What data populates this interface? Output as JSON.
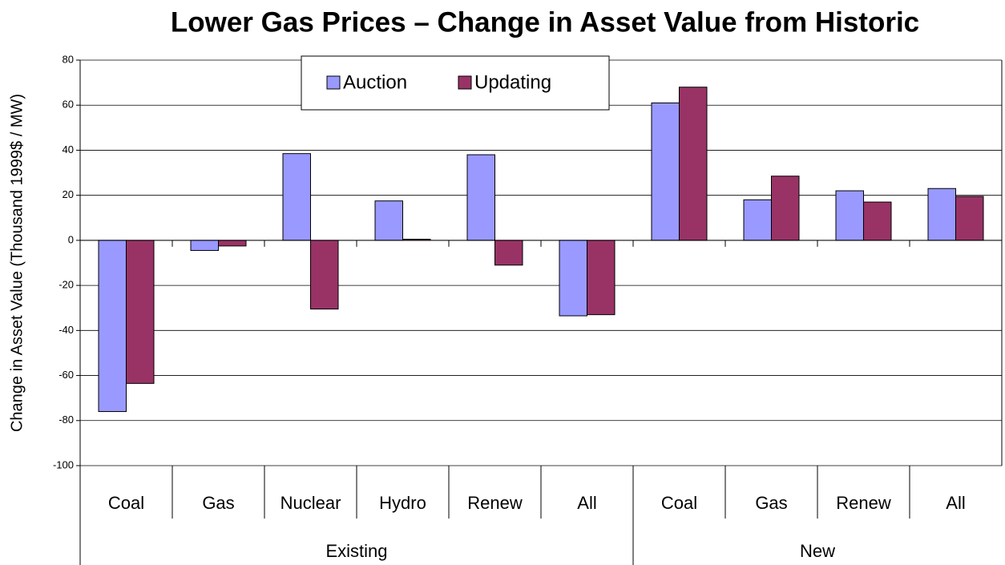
{
  "chart_data": {
    "type": "bar",
    "title": "Lower Gas Prices – Change in Asset Value from Historic",
    "y_label": "Change in Asset Value (Thousand 1999$ / MW)",
    "groups": [
      {
        "name": "Existing",
        "categories": [
          "Coal",
          "Gas",
          "Nuclear",
          "Hydro",
          "Renew",
          "All"
        ]
      },
      {
        "name": "New",
        "categories": [
          "Coal",
          "Gas",
          "Renew",
          "All"
        ]
      }
    ],
    "series": [
      {
        "name": "Auction",
        "color": "#9999ff",
        "values": [
          -76,
          -4.5,
          38.5,
          17.5,
          38,
          -33.5,
          61,
          18,
          22,
          23
        ]
      },
      {
        "name": "Updating",
        "color": "#993366",
        "values": [
          -63.5,
          -2.5,
          -30.5,
          0.5,
          -11,
          -33,
          68,
          28.5,
          17,
          19.5
        ]
      }
    ],
    "ylim": [
      -100,
      80
    ],
    "yticks": [
      -100,
      -80,
      -60,
      -40,
      -20,
      0,
      20,
      40,
      60,
      80
    ],
    "grid": true,
    "legend": "top"
  }
}
